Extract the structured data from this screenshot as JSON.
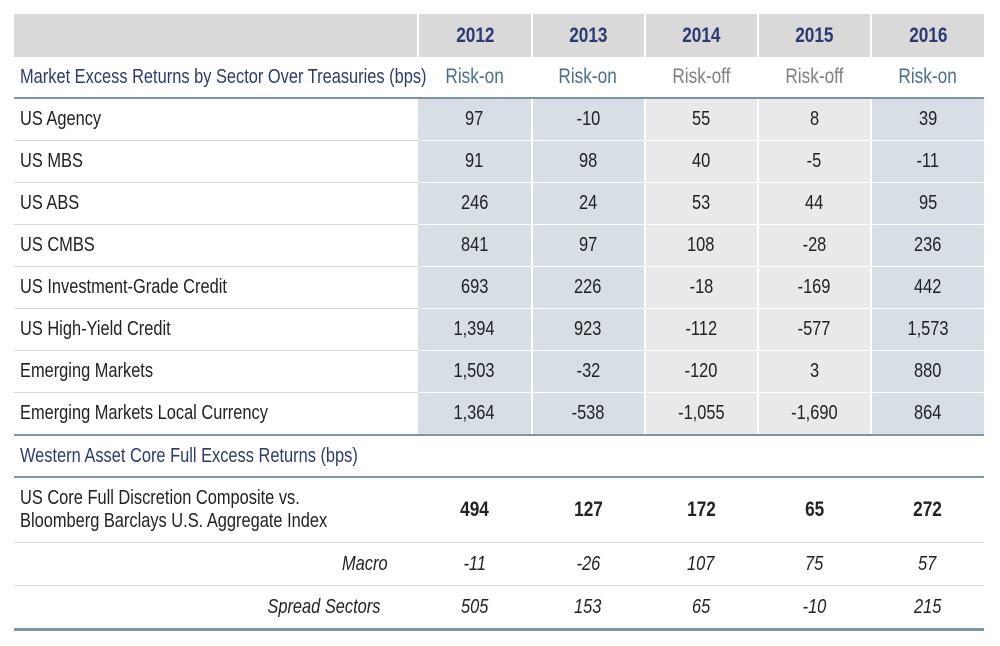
{
  "chart_data": {
    "type": "table",
    "years": [
      "2012",
      "2013",
      "2014",
      "2015",
      "2016"
    ],
    "section1_title": "Market Excess Returns by Sector Over Treasuries (bps)",
    "regimes": [
      "Risk-on",
      "Risk-on",
      "Risk-off",
      "Risk-off",
      "Risk-on"
    ],
    "rows": [
      {
        "label": "US Agency",
        "values": [
          "97",
          "-10",
          "55",
          "8",
          "39"
        ]
      },
      {
        "label": "US MBS",
        "values": [
          "91",
          "98",
          "40",
          "-5",
          "-11"
        ]
      },
      {
        "label": "US ABS",
        "values": [
          "246",
          "24",
          "53",
          "44",
          "95"
        ]
      },
      {
        "label": "US CMBS",
        "values": [
          "841",
          "97",
          "108",
          "-28",
          "236"
        ]
      },
      {
        "label": "US Investment-Grade Credit",
        "values": [
          "693",
          "226",
          "-18",
          "-169",
          "442"
        ]
      },
      {
        "label": "US High-Yield Credit",
        "values": [
          "1,394",
          "923",
          "-112",
          "-577",
          "1,573"
        ]
      },
      {
        "label": "Emerging Markets",
        "values": [
          "1,503",
          "-32",
          "-120",
          "3",
          "880"
        ]
      },
      {
        "label": "Emerging Markets Local Currency",
        "values": [
          "1,364",
          "-538",
          "-1,055",
          "-1,690",
          "864"
        ]
      }
    ],
    "section2_title": "Western Asset Core Full Excess Returns (bps)",
    "composite": {
      "label_line1": "US Core Full Discretion Composite vs.",
      "label_line2": "Bloomberg Barclays U.S. Aggregate Index",
      "values": [
        "494",
        "127",
        "172",
        "65",
        "272"
      ]
    },
    "sub_rows": [
      {
        "label": "Macro",
        "values": [
          "-11",
          "-26",
          "107",
          "75",
          "57"
        ]
      },
      {
        "label": "Spread Sectors",
        "values": [
          "505",
          "153",
          "65",
          "-10",
          "215"
        ]
      }
    ]
  }
}
